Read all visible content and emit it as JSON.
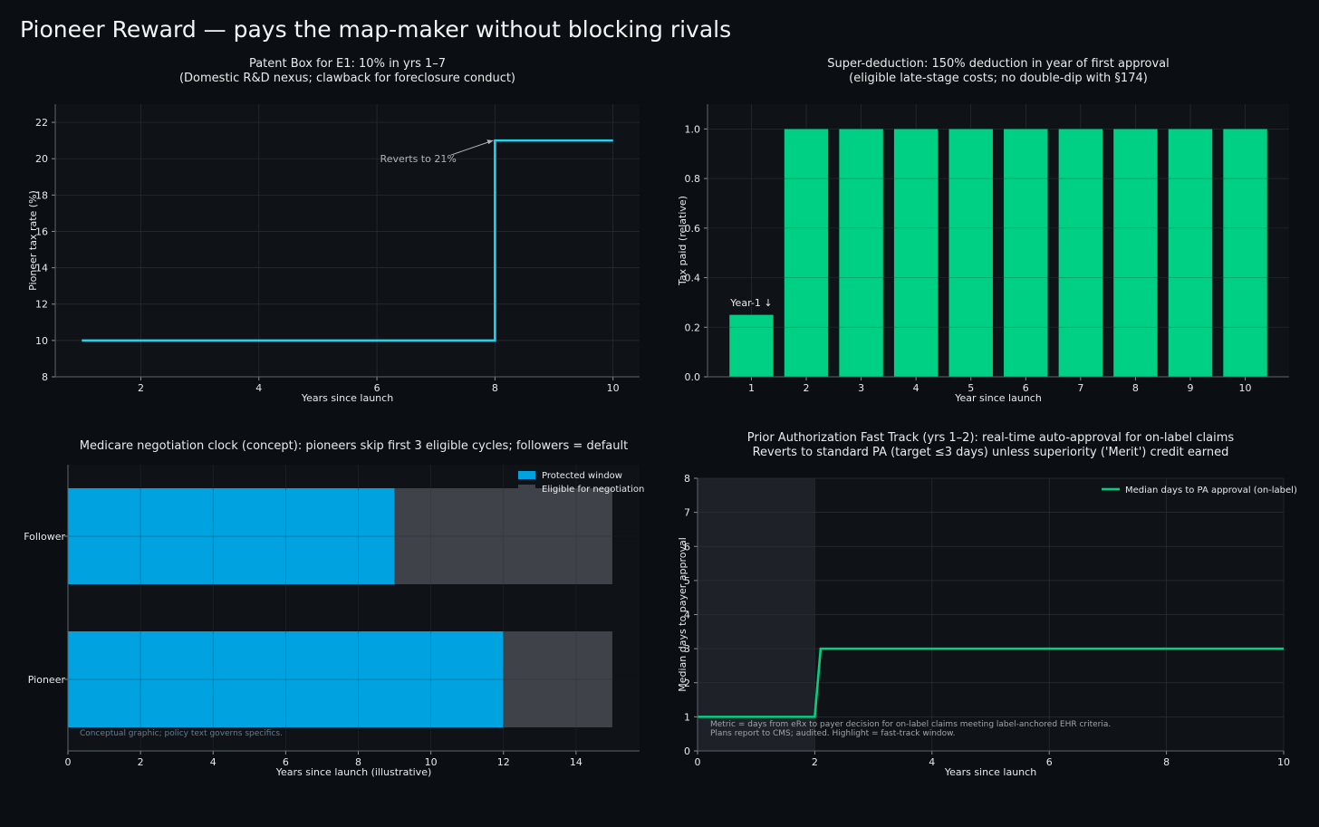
{
  "page": {
    "title": "Pioneer Reward — pays the map-maker without blocking rivals",
    "colors": {
      "background": "#0b0e12",
      "panel": "#0f1317",
      "grid": "#2a2f36",
      "text": "#e8eaed",
      "muted": "#9aa0a6",
      "cyan": "#22d3ee",
      "green": "#00d084",
      "blue": "#00a3e0",
      "gray": "#3f4349",
      "shade": "#1e2127"
    }
  },
  "chart_data": [
    {
      "id": "patent-box",
      "type": "line",
      "title_lines": [
        "Patent Box for E1: 10% in yrs 1–7",
        "(Domestic R&D nexus; clawback for foreclosure conduct)"
      ],
      "xlabel": "Years since launch",
      "ylabel": "Pioneer tax rate (%)",
      "xlim": [
        0.55,
        10.45
      ],
      "ylim": [
        8,
        23
      ],
      "xticks": [
        2,
        4,
        6,
        8,
        10
      ],
      "yticks": [
        8,
        10,
        12,
        14,
        16,
        18,
        20,
        22
      ],
      "grid": true,
      "series": [
        {
          "step": "post",
          "color": "#22d3ee",
          "x": [
            1,
            2,
            3,
            4,
            5,
            6,
            7,
            8,
            9,
            10
          ],
          "y": [
            10,
            10,
            10,
            10,
            10,
            10,
            10,
            21,
            21,
            21
          ]
        }
      ],
      "annotation": {
        "text": "Reverts to 21%",
        "point": [
          8,
          21
        ],
        "text_at": [
          6.7,
          20
        ]
      }
    },
    {
      "id": "super-deduction",
      "type": "bar",
      "title_lines": [
        "Super-deduction: 150% deduction in year of first approval",
        "(eligible late-stage costs; no double-dip with §174)"
      ],
      "xlabel": "Year since launch",
      "ylabel": "Tax paid (relative)",
      "categories": [
        "1",
        "2",
        "3",
        "4",
        "5",
        "6",
        "7",
        "8",
        "9",
        "10"
      ],
      "values": [
        0.25,
        1,
        1,
        1,
        1,
        1,
        1,
        1,
        1,
        1
      ],
      "ylim": [
        0,
        1.1
      ],
      "yticks": [
        0,
        0.2,
        0.4,
        0.6,
        0.8,
        1.0
      ],
      "grid": true,
      "color": "#00d084",
      "annotation": {
        "text": "Year-1 ↓",
        "category_index": 0,
        "y": 0.3
      }
    },
    {
      "id": "negotiation-clock",
      "type": "bar",
      "orientation": "horizontal",
      "title_lines": [
        "Medicare negotiation clock (concept): pioneers skip first 3 eligible cycles; followers = default"
      ],
      "xlabel": "Years since launch (illustrative)",
      "categories": [
        "Pioneer",
        "Follower"
      ],
      "xlim": [
        0,
        15.75
      ],
      "xticks": [
        0,
        2,
        4,
        6,
        8,
        10,
        12,
        14
      ],
      "grid": true,
      "legend": "top-right",
      "series": [
        {
          "name": "Protected window",
          "color": "#00a3e0",
          "values": [
            12,
            9
          ]
        },
        {
          "name": "Eligible for negotiation",
          "color": "#3f4349",
          "values": [
            3,
            6
          ]
        }
      ],
      "footnote": "Conceptual graphic; policy text governs specifics."
    },
    {
      "id": "pa-fast-track",
      "type": "line",
      "title_lines": [
        "Prior Authorization Fast Track (yrs 1–2): real-time auto-approval for on-label claims",
        "Reverts to standard PA (target ≤3 days) unless superiority ('Merit') credit earned"
      ],
      "xlabel": "Years since launch",
      "ylabel": "Median days to payer approval",
      "xlim": [
        0,
        10
      ],
      "ylim": [
        0,
        8
      ],
      "xticks": [
        0,
        2,
        4,
        6,
        8,
        10
      ],
      "yticks": [
        0,
        1,
        2,
        3,
        4,
        5,
        6,
        7,
        8
      ],
      "grid": true,
      "legend": "top-right",
      "highlight_x": [
        0,
        2
      ],
      "series": [
        {
          "name": "Median days to PA approval (on-label)",
          "color": "#00d084",
          "x": [
            0,
            2,
            2.1,
            10
          ],
          "y": [
            1,
            1,
            3,
            3
          ]
        }
      ],
      "footnote_lines": [
        "Metric = days from eRx to payer decision for on-label claims meeting label-anchored EHR criteria.",
        "Plans report to CMS; audited. Highlight = fast-track window."
      ]
    }
  ]
}
